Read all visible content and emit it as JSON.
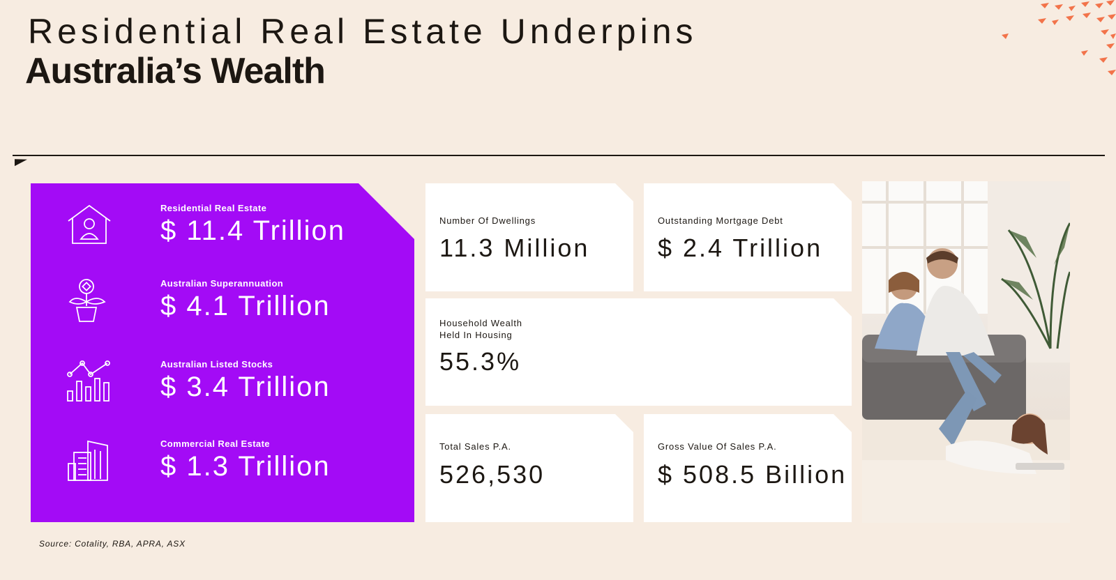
{
  "title": {
    "line1": "Residential Real Estate Underpins",
    "line2": "Australia’s Wealth"
  },
  "colors": {
    "background": "#f7ece1",
    "accent_purple": "#a30bf6",
    "accent_orange": "#f2734a",
    "text": "#1c1712"
  },
  "wealth_panel": {
    "items": [
      {
        "icon": "house-person-icon",
        "label": "Residential Real Estate",
        "value": "$ 11.4 Trillion"
      },
      {
        "icon": "plant-coin-icon",
        "label": "Australian Superannuation",
        "value": "$ 4.1 Trillion"
      },
      {
        "icon": "stocks-chart-icon",
        "label": "Australian Listed Stocks",
        "value": "$ 3.4 Trillion"
      },
      {
        "icon": "office-buildings-icon",
        "label": "Commercial Real Estate",
        "value": "$ 1.3 Trillion"
      }
    ]
  },
  "stats": {
    "dwellings": {
      "label": "Number Of Dwellings",
      "value": "11.3 Million"
    },
    "mortgage": {
      "label": "Outstanding Mortgage Debt",
      "value": "$ 2.4 Trillion"
    },
    "household": {
      "label_line1": "Household Wealth",
      "label_line2": "Held In Housing",
      "value": "55.3%"
    },
    "sales": {
      "label": "Total Sales P.A.",
      "value": "526,530"
    },
    "gross": {
      "label": "Gross Value Of Sales P.A.",
      "value": "$ 508.5 Billion"
    }
  },
  "photo": {
    "subject": "family-on-floor-photo"
  },
  "source": "Source: Cotality, RBA, APRA, ASX"
}
